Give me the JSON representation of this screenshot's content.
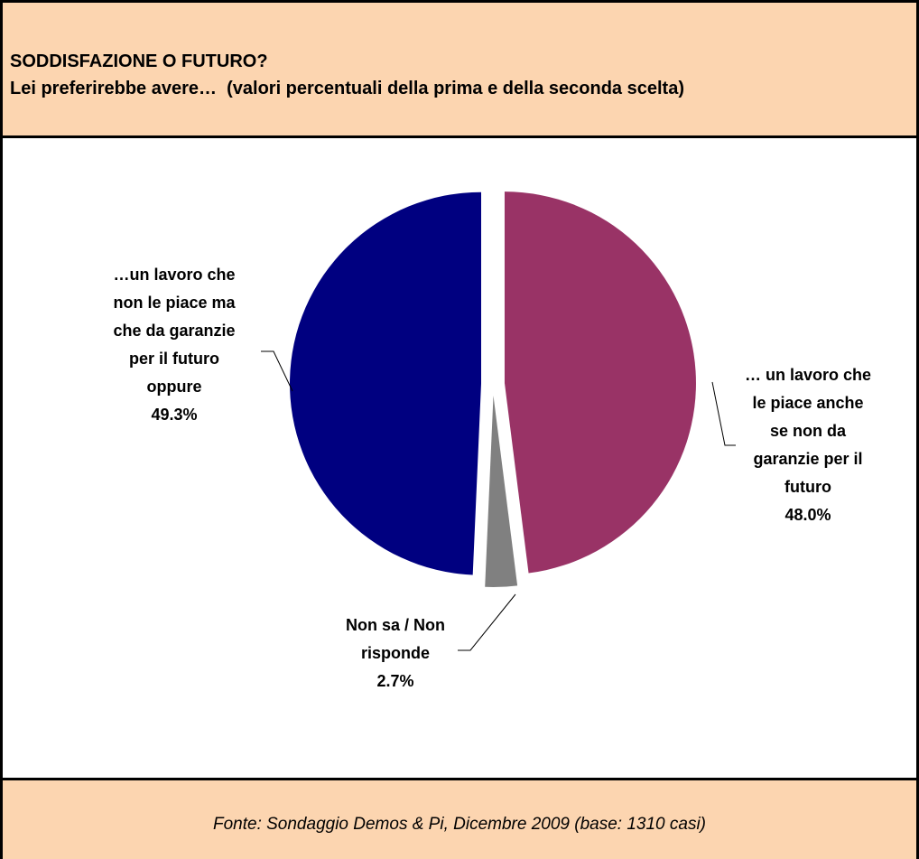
{
  "chart_data": {
    "type": "pie",
    "title": "SODDISFAZIONE O FUTURO?",
    "subtitle": "Lei preferirebbe avere…  (valori percentuali della prima e della seconda scelta)",
    "categories": [
      "… un lavoro che\nle piace anche\nse non da\ngaranzie per il\nfuturo",
      "Non sa / Non\nrisponde",
      "…un lavoro che\nnon le piace ma\nche da garanzie\nper il futuro\noppure"
    ],
    "values": [
      48.0,
      2.7,
      49.3
    ],
    "value_labels": [
      "48.0%",
      "2.7%",
      "49.3%"
    ],
    "colors": [
      "#993366",
      "#808080",
      "#000080"
    ],
    "source": "Fonte: Sondaggio Demos & Pi, Dicembre 2009 (base: 1310 casi)"
  }
}
